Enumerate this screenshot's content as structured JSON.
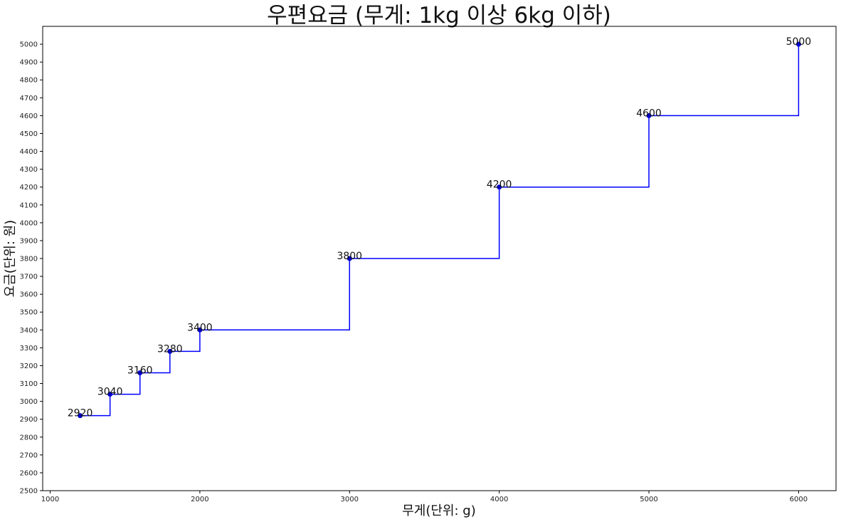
{
  "chart_data": {
    "type": "line",
    "title": "우편요금 (무게: 1kg 이상 6kg 이하)",
    "xlabel": "무게(단위: g)",
    "ylabel": "요금(단위: 원)",
    "xlim": [
      950,
      6250
    ],
    "ylim": [
      2500,
      5100
    ],
    "xticks": [
      1000,
      2000,
      3000,
      4000,
      5000,
      6000
    ],
    "yticks": [
      2500,
      2600,
      2700,
      2800,
      2900,
      3000,
      3100,
      3200,
      3300,
      3400,
      3500,
      3600,
      3700,
      3800,
      3900,
      4000,
      4100,
      4200,
      4300,
      4400,
      4500,
      4600,
      4700,
      4800,
      4900,
      5000
    ],
    "step_where": "pre",
    "line_color": "#0000ff",
    "marker_color": "#0000cd",
    "grid": false,
    "series": [
      {
        "x": [
          1200,
          1400,
          1600,
          1800,
          2000,
          3000,
          4000,
          5000,
          6000
        ],
        "y": [
          2920,
          3040,
          3160,
          3280,
          3400,
          3800,
          4200,
          4600,
          5000
        ]
      }
    ]
  }
}
